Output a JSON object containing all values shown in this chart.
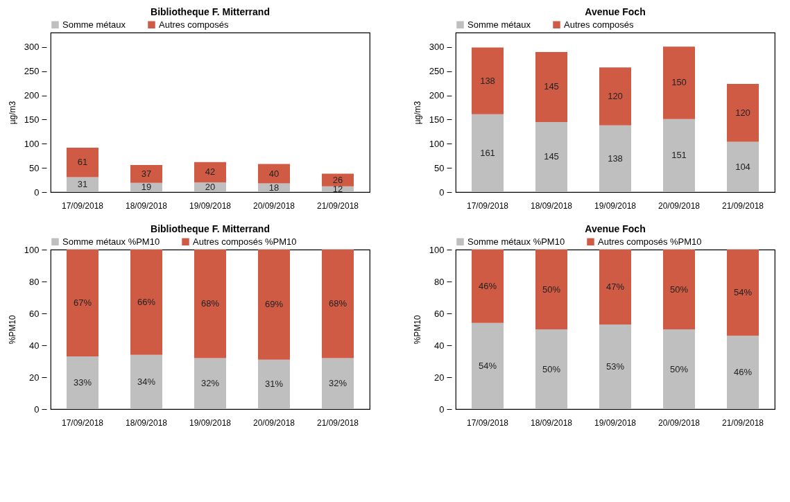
{
  "chart_data": [
    {
      "type": "bar",
      "title": "Bibliotheque F. Mitterrand",
      "ylabel": "µg/m3",
      "categories": [
        "17/09/2018",
        "18/09/2018",
        "19/09/2018",
        "20/09/2018",
        "21/09/2018"
      ],
      "stacked": true,
      "ylim": [
        0,
        330
      ],
      "yticks": [
        0,
        50,
        100,
        150,
        200,
        250,
        300
      ],
      "grid": false,
      "legend": "top",
      "data_labels": true,
      "series": [
        {
          "name": "Somme métaux",
          "color": "#bfbfbf",
          "values": [
            31,
            19,
            20,
            18,
            12
          ]
        },
        {
          "name": "Autres composés",
          "color": "#d05b45",
          "values": [
            61,
            37,
            42,
            40,
            26
          ]
        }
      ]
    },
    {
      "type": "bar",
      "title": "Avenue Foch",
      "ylabel": "µg/m3",
      "categories": [
        "17/09/2018",
        "18/09/2018",
        "19/09/2018",
        "20/09/2018",
        "21/09/2018"
      ],
      "stacked": true,
      "ylim": [
        0,
        330
      ],
      "yticks": [
        0,
        50,
        100,
        150,
        200,
        250,
        300
      ],
      "grid": false,
      "legend": "top",
      "data_labels": true,
      "series": [
        {
          "name": "Somme métaux",
          "color": "#bfbfbf",
          "values": [
            161,
            145,
            138,
            151,
            104
          ]
        },
        {
          "name": "Autres composés",
          "color": "#d05b45",
          "values": [
            138,
            145,
            120,
            150,
            120
          ]
        }
      ]
    },
    {
      "type": "bar",
      "title": "Bibliotheque F. Mitterrand",
      "ylabel": "%PM10",
      "categories": [
        "17/09/2018",
        "18/09/2018",
        "19/09/2018",
        "20/09/2018",
        "21/09/2018"
      ],
      "stacked": true,
      "ylim": [
        0,
        100
      ],
      "yticks": [
        0,
        20,
        40,
        60,
        80,
        100
      ],
      "grid": false,
      "legend": "top",
      "series": [
        {
          "name": "Somme métaux %PM10",
          "color": "#bfbfbf",
          "values": [
            33,
            34,
            32,
            31,
            32
          ],
          "value_labels": [
            "33%",
            "34%",
            "32%",
            "31%",
            "32%"
          ]
        },
        {
          "name": "Autres composés %PM10",
          "color": "#d05b45",
          "values": [
            67,
            66,
            68,
            69,
            68
          ],
          "value_labels": [
            "67%",
            "66%",
            "68%",
            "69%",
            "68%"
          ]
        }
      ]
    },
    {
      "type": "bar",
      "title": "Avenue Foch",
      "ylabel": "%PM10",
      "categories": [
        "17/09/2018",
        "18/09/2018",
        "19/09/2018",
        "20/09/2018",
        "21/09/2018"
      ],
      "stacked": true,
      "ylim": [
        0,
        100
      ],
      "yticks": [
        0,
        20,
        40,
        60,
        80,
        100
      ],
      "grid": false,
      "legend": "top",
      "series": [
        {
          "name": "Somme métaux %PM10",
          "color": "#bfbfbf",
          "values": [
            54,
            50,
            53,
            50,
            46
          ],
          "value_labels": [
            "54%",
            "50%",
            "53%",
            "50%",
            "46%"
          ]
        },
        {
          "name": "Autres composés %PM10",
          "color": "#d05b45",
          "values": [
            46,
            50,
            47,
            50,
            54
          ],
          "value_labels": [
            "46%",
            "50%",
            "47%",
            "50%",
            "54%"
          ]
        }
      ]
    }
  ]
}
